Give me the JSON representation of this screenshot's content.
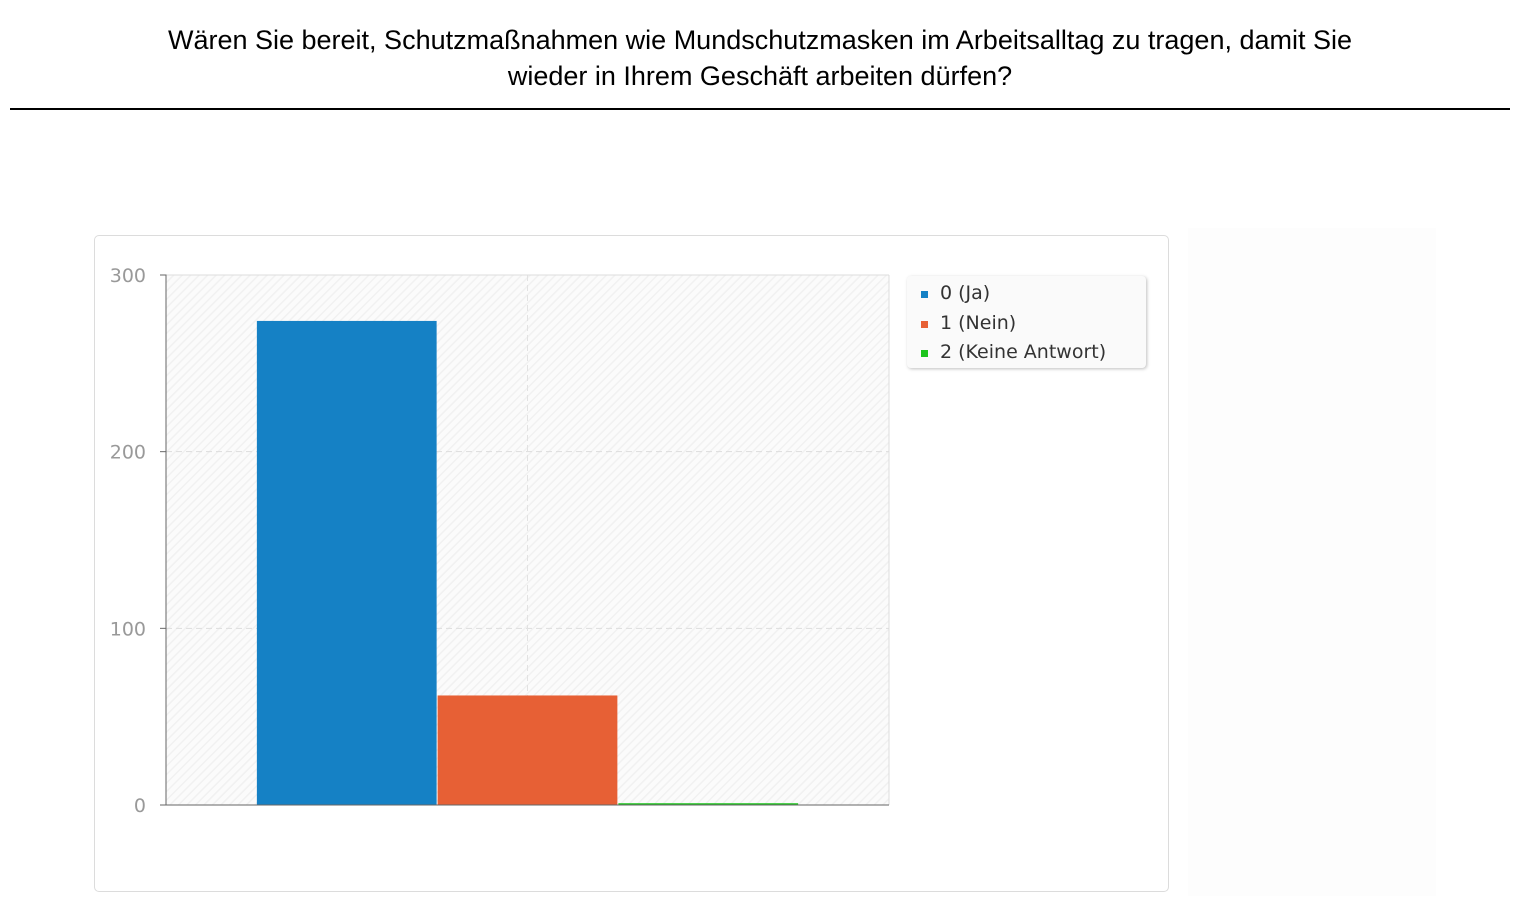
{
  "question": {
    "line1": "Wären Sie bereit, Schutzmaßnahmen wie Mundschutzmasken im Arbeitsalltag zu tragen, damit Sie",
    "line2": "wieder in Ihrem Geschäft arbeiten dürfen?"
  },
  "chart_data": {
    "type": "bar",
    "categories": [
      "0 (Ja)",
      "1 (Nein)",
      "2 (Keine Antwort)"
    ],
    "series": [
      {
        "name": "0 (Ja)",
        "values": [
          274,
          null,
          null
        ],
        "color": "#1581c5"
      },
      {
        "name": "1 (Nein)",
        "values": [
          null,
          62,
          null
        ],
        "color": "#e76035"
      },
      {
        "name": "2 (Keine Antwort)",
        "values": [
          null,
          null,
          1
        ],
        "color": "#1cc41c"
      }
    ],
    "values": [
      274,
      62,
      1
    ],
    "colors": [
      "#1581c5",
      "#e76035",
      "#1cc41c"
    ],
    "yticks": [
      0,
      100,
      200,
      300
    ],
    "ylim": [
      0,
      300
    ],
    "grid": true,
    "legend_position": "top-right",
    "title": "",
    "xlabel": "",
    "ylabel": ""
  }
}
